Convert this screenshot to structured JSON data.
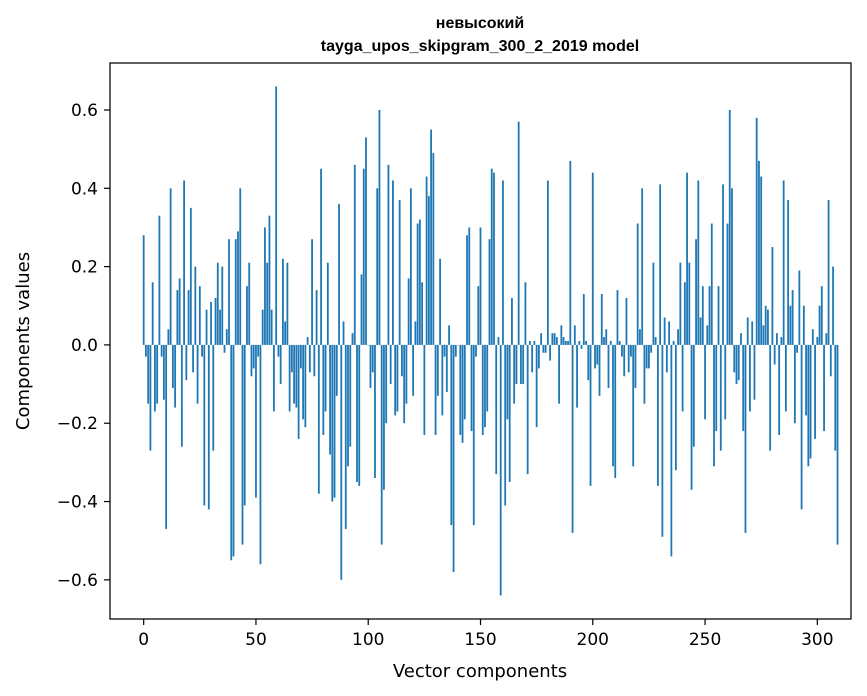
{
  "chart_data": {
    "type": "bar",
    "title": "невысокий",
    "subtitle": "tayga_upos_skipgram_300_2_2019 model",
    "xlabel": "Vector components",
    "ylabel": "Components values",
    "xlim": [
      -15,
      315
    ],
    "ylim": [
      -0.7,
      0.72
    ],
    "xticks": [
      0,
      50,
      100,
      150,
      200,
      250,
      300
    ],
    "yticks": [
      -0.6,
      -0.4,
      -0.2,
      0.0,
      0.2,
      0.4,
      0.6
    ],
    "xtick_labels": [
      "0",
      "50",
      "100",
      "150",
      "200",
      "250",
      "300"
    ],
    "ytick_labels": [
      "−0.6",
      "−0.4",
      "−0.2",
      "0.0",
      "0.2",
      "0.4",
      "0.6"
    ],
    "bar_color": "#1f77b4",
    "grid": false,
    "legend": "none",
    "x_start": 0,
    "values": [
      0.28,
      -0.03,
      -0.15,
      -0.27,
      0.16,
      -0.17,
      -0.15,
      0.33,
      -0.03,
      -0.14,
      -0.47,
      0.04,
      0.4,
      -0.11,
      -0.16,
      0.14,
      0.17,
      -0.26,
      0.42,
      -0.09,
      0.14,
      0.35,
      -0.07,
      0.2,
      -0.15,
      0.15,
      -0.03,
      -0.41,
      0.09,
      -0.42,
      0.11,
      -0.27,
      0.12,
      0.21,
      0.09,
      0.2,
      -0.02,
      0.04,
      0.27,
      -0.55,
      -0.54,
      0.27,
      0.29,
      0.4,
      -0.51,
      -0.41,
      0.15,
      0.21,
      -0.08,
      -0.06,
      -0.39,
      -0.03,
      -0.56,
      0.09,
      0.3,
      0.21,
      0.33,
      0.09,
      -0.17,
      0.66,
      -0.03,
      -0.1,
      0.22,
      0.06,
      0.21,
      -0.17,
      -0.07,
      -0.15,
      -0.16,
      -0.24,
      -0.06,
      -0.19,
      -0.21,
      0.02,
      -0.07,
      0.27,
      -0.08,
      0.14,
      -0.38,
      0.45,
      -0.23,
      -0.17,
      0.21,
      -0.28,
      -0.4,
      -0.39,
      -0.13,
      0.36,
      -0.6,
      0.06,
      -0.47,
      -0.31,
      -0.26,
      0.03,
      0.46,
      -0.35,
      -0.36,
      0.18,
      0.45,
      0.53,
      0.0,
      -0.11,
      -0.07,
      -0.34,
      0.4,
      0.6,
      -0.51,
      -0.37,
      -0.2,
      0.46,
      -0.1,
      0.42,
      -0.18,
      -0.17,
      0.37,
      -0.08,
      -0.2,
      -0.15,
      0.17,
      0.4,
      -0.13,
      0.06,
      0.31,
      0.32,
      0.16,
      -0.23,
      0.43,
      0.38,
      0.55,
      0.49,
      -0.23,
      -0.13,
      0.22,
      -0.18,
      -0.03,
      -0.12,
      0.05,
      -0.46,
      -0.58,
      -0.03,
      0.0,
      -0.23,
      -0.25,
      -0.19,
      0.28,
      0.3,
      -0.22,
      -0.46,
      -0.03,
      0.15,
      0.3,
      -0.23,
      -0.21,
      -0.17,
      0.27,
      0.45,
      0.44,
      -0.33,
      0.02,
      -0.64,
      0.42,
      -0.41,
      -0.19,
      -0.35,
      0.12,
      -0.15,
      -0.1,
      0.57,
      -0.1,
      -0.1,
      0.16,
      -0.33,
      0.01,
      -0.07,
      0.01,
      -0.21,
      -0.06,
      0.03,
      -0.02,
      -0.02,
      0.42,
      -0.04,
      0.03,
      0.03,
      0.02,
      -0.15,
      0.05,
      0.02,
      0.01,
      0.01,
      0.47,
      -0.48,
      0.05,
      -0.16,
      0.01,
      -0.01,
      0.13,
      0.01,
      -0.09,
      -0.36,
      0.44,
      -0.06,
      -0.05,
      -0.13,
      0.13,
      0.02,
      0.04,
      -0.11,
      0.01,
      -0.31,
      -0.34,
      0.14,
      0.01,
      -0.03,
      -0.08,
      0.12,
      -0.07,
      -0.03,
      -0.31,
      -0.11,
      0.31,
      0.04,
      0.4,
      -0.15,
      -0.06,
      -0.06,
      -0.02,
      0.21,
      0.02,
      -0.36,
      0.41,
      -0.49,
      0.07,
      -0.07,
      0.06,
      -0.54,
      0.01,
      -0.32,
      0.04,
      0.21,
      -0.17,
      0.16,
      0.44,
      0.21,
      -0.37,
      -0.26,
      0.27,
      0.42,
      0.07,
      0.15,
      -0.19,
      0.05,
      0.15,
      0.31,
      -0.31,
      -0.22,
      0.15,
      -0.27,
      0.41,
      -0.19,
      0.31,
      0.6,
      0.4,
      -0.07,
      -0.1,
      -0.09,
      0.03,
      -0.22,
      -0.48,
      0.07,
      -0.17,
      0.06,
      -0.14,
      0.58,
      0.47,
      0.43,
      0.05,
      0.1,
      0.09,
      -0.27,
      0.25,
      -0.05,
      0.03,
      -0.23,
      0.02,
      0.42,
      -0.17,
      0.37,
      0.1,
      0.14,
      -0.2,
      -0.02,
      0.19,
      -0.42,
      0.1,
      -0.18,
      -0.31,
      -0.29,
      0.04,
      -0.24,
      0.02,
      0.1,
      0.15,
      -0.22,
      0.03,
      0.37,
      -0.08,
      0.2,
      -0.27,
      -0.51
    ]
  }
}
